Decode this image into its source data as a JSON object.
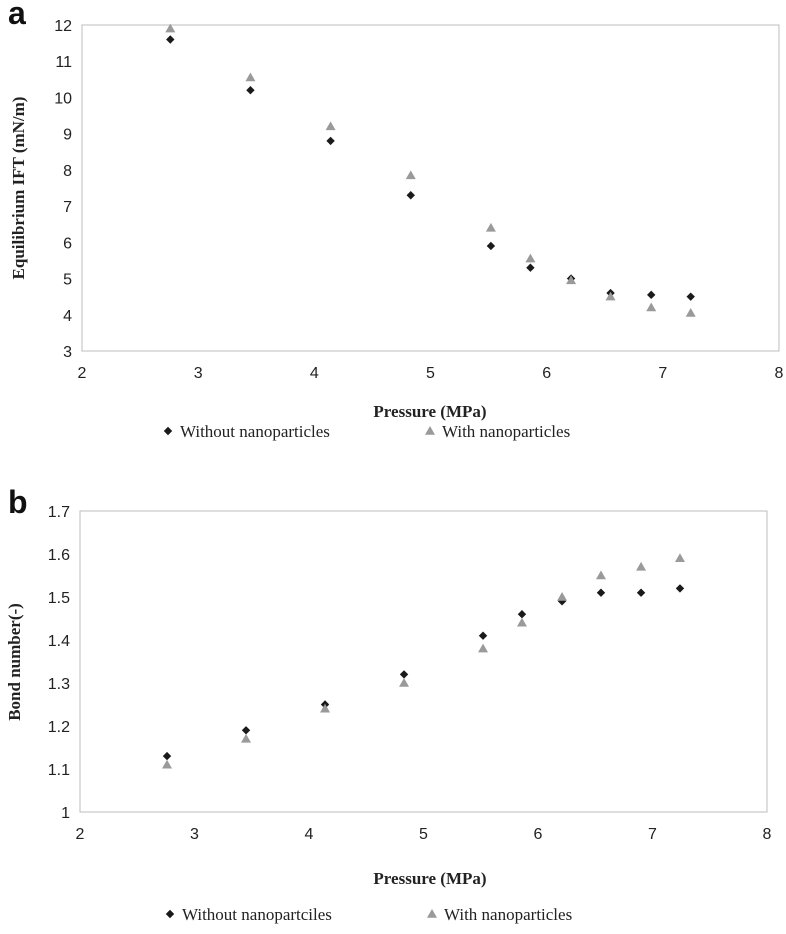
{
  "chart_data": [
    {
      "panel": "a",
      "type": "scatter",
      "xlabel": "Pressure (MPa)",
      "ylabel": "Equilibrium IFT (mN/m)",
      "xlim": [
        2,
        8
      ],
      "ylim": [
        3,
        12
      ],
      "xticks": [
        2,
        3,
        4,
        5,
        6,
        7,
        8
      ],
      "yticks": [
        3,
        4,
        5,
        6,
        7,
        8,
        9,
        10,
        11,
        12
      ],
      "grid": false,
      "legend_position": "bottom",
      "series": [
        {
          "name": "Without nanoparticles",
          "marker": "diamond",
          "color": "#1a1a1a",
          "x": [
            2.76,
            3.45,
            4.14,
            4.83,
            5.52,
            5.86,
            6.21,
            6.55,
            6.9,
            7.24
          ],
          "y": [
            11.6,
            10.2,
            8.8,
            7.3,
            5.9,
            5.3,
            5.0,
            4.6,
            4.55,
            4.5
          ]
        },
        {
          "name": "With nanoparticles",
          "marker": "triangle",
          "color": "#9a9a9a",
          "x": [
            2.76,
            3.45,
            4.14,
            4.83,
            5.52,
            5.86,
            6.21,
            6.55,
            6.9,
            7.24
          ],
          "y": [
            11.9,
            10.55,
            9.2,
            7.85,
            6.4,
            5.55,
            4.95,
            4.5,
            4.2,
            4.05
          ]
        }
      ]
    },
    {
      "panel": "b",
      "type": "scatter",
      "xlabel": "Pressure (MPa)",
      "ylabel": "Bond number(-)",
      "xlim": [
        2,
        8
      ],
      "ylim": [
        1,
        1.7
      ],
      "xticks": [
        2,
        3,
        4,
        5,
        6,
        7,
        8
      ],
      "yticks": [
        1,
        1.1,
        1.2,
        1.3,
        1.4,
        1.5,
        1.6,
        1.7
      ],
      "grid": false,
      "legend_position": "bottom",
      "series": [
        {
          "name": "Without nanopartciles",
          "marker": "diamond",
          "color": "#1a1a1a",
          "x": [
            2.76,
            3.45,
            4.14,
            4.83,
            5.52,
            5.86,
            6.21,
            6.55,
            6.9,
            7.24
          ],
          "y": [
            1.13,
            1.19,
            1.25,
            1.32,
            1.41,
            1.46,
            1.49,
            1.51,
            1.51,
            1.52
          ]
        },
        {
          "name": "With nanoparticles",
          "marker": "triangle",
          "color": "#9a9a9a",
          "x": [
            2.76,
            3.45,
            4.14,
            4.83,
            5.52,
            5.86,
            6.21,
            6.55,
            6.9,
            7.24
          ],
          "y": [
            1.11,
            1.17,
            1.24,
            1.3,
            1.38,
            1.44,
            1.5,
            1.55,
            1.57,
            1.59
          ]
        }
      ]
    }
  ]
}
